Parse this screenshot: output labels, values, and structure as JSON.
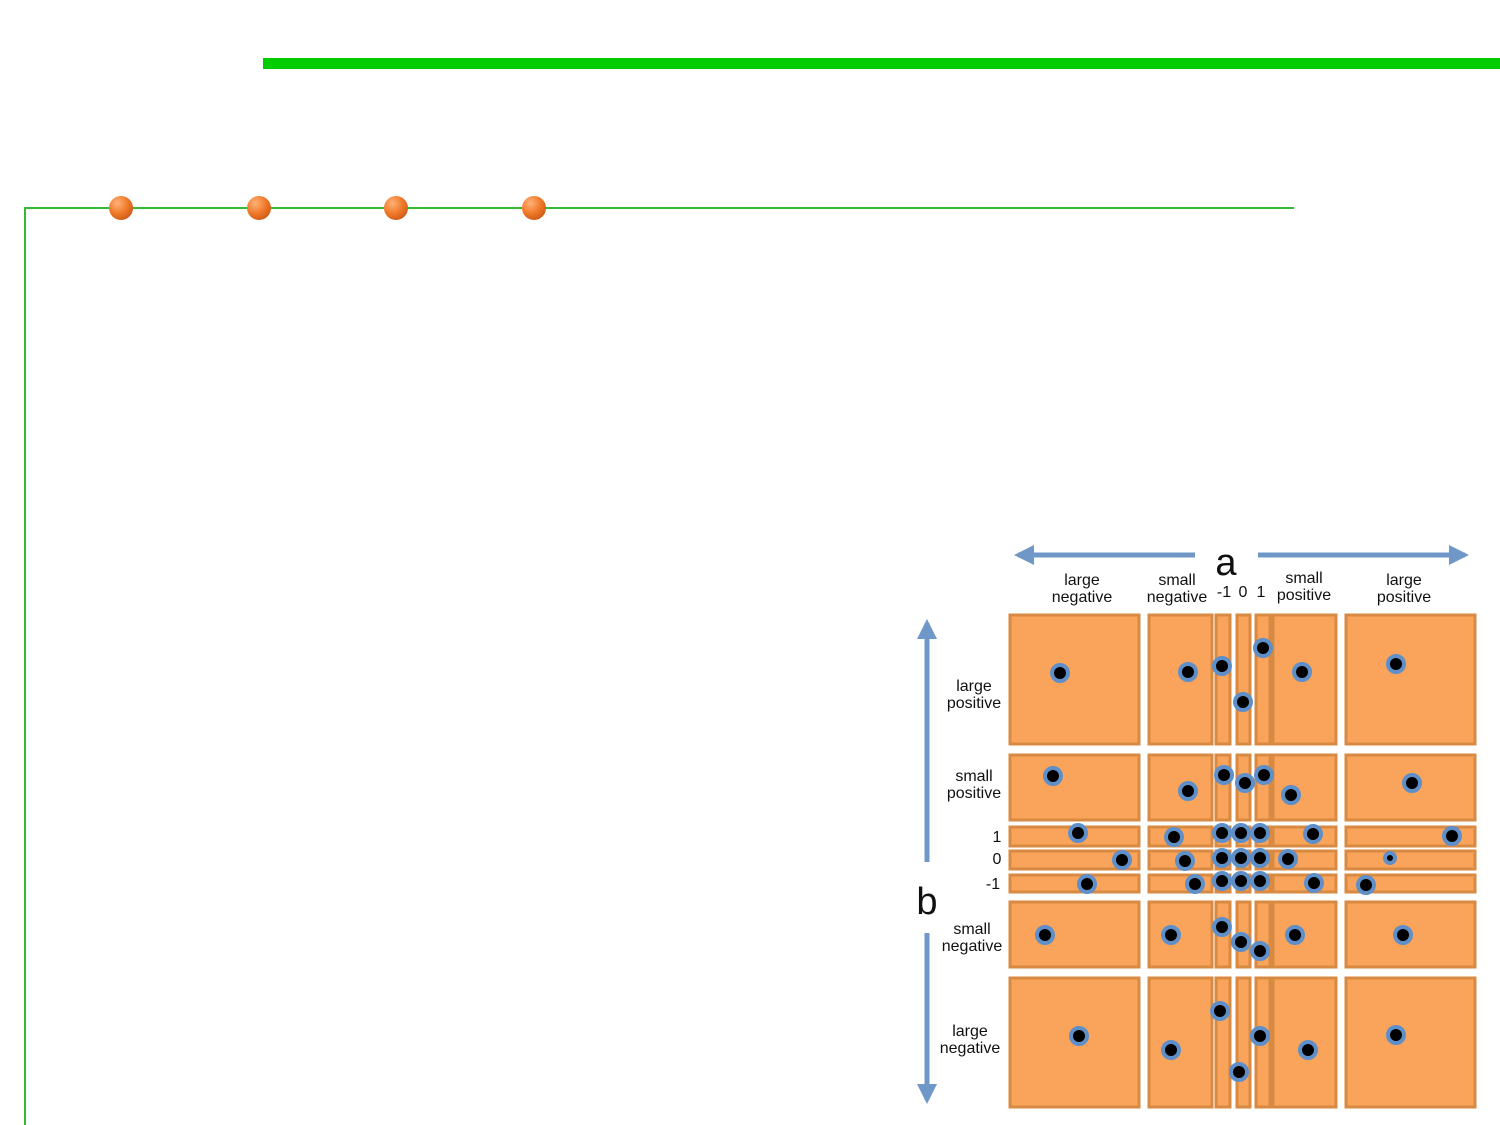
{
  "colors": {
    "accent_green": "#00cc00",
    "line_green": "#33bb33",
    "bullet_orange": "#f07a2a",
    "cell_fill": "#f9a45a",
    "cell_border": "#d88a42",
    "arrow_blue": "#6f97c7",
    "dot_ring": "#5f8fc8",
    "dot_core": "#000000"
  },
  "bullets": [
    "bullet",
    "bullet",
    "bullet",
    "bullet"
  ],
  "diagram": {
    "axis_a_label": "a",
    "axis_b_label": "b",
    "columns": [
      {
        "line1": "large",
        "line2": "negative"
      },
      {
        "line1": "small",
        "line2": "negative"
      },
      {
        "line1": "-1",
        "line2": ""
      },
      {
        "line1": "0",
        "line2": ""
      },
      {
        "line1": "1",
        "line2": ""
      },
      {
        "line1": "small",
        "line2": "positive"
      },
      {
        "line1": "large",
        "line2": "positive"
      }
    ],
    "rows": [
      {
        "line1": "large",
        "line2": "positive"
      },
      {
        "line1": "small",
        "line2": "positive"
      },
      {
        "line1": "1",
        "line2": ""
      },
      {
        "line1": "0",
        "line2": ""
      },
      {
        "line1": "-1",
        "line2": ""
      },
      {
        "line1": "small",
        "line2": "negative"
      },
      {
        "line1": "large",
        "line2": "negative"
      }
    ]
  }
}
